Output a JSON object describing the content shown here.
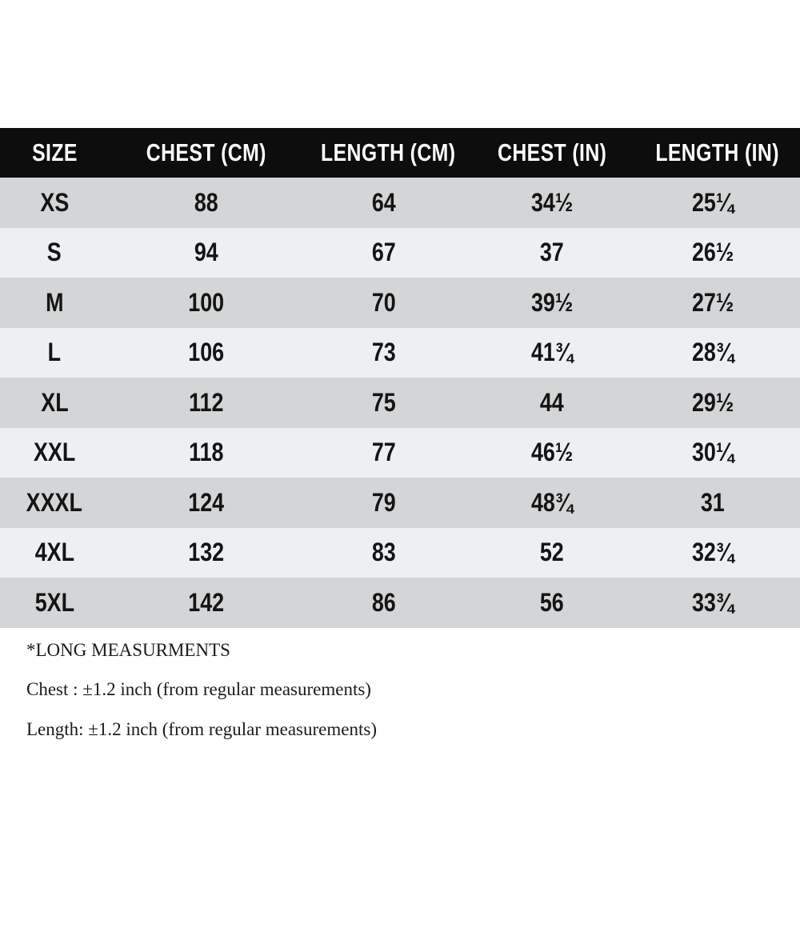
{
  "chart_data": {
    "type": "table",
    "columns": [
      "SIZE",
      "CHEST (CM)",
      "LENGTH (CM)",
      "CHEST (IN)",
      "LENGTH (IN)"
    ],
    "rows": [
      [
        "XS",
        "88",
        "64",
        "34½",
        "25¼"
      ],
      [
        "S",
        "94",
        "67",
        "37",
        "26½"
      ],
      [
        "M",
        "100",
        "70",
        "39½",
        "27½"
      ],
      [
        "L",
        "106",
        "73",
        "41¾",
        "28¾"
      ],
      [
        "XL",
        "112",
        "75",
        "44",
        "29½"
      ],
      [
        "XXL",
        "118",
        "77",
        "46½",
        "30¼"
      ],
      [
        "XXXL",
        "124",
        "79",
        "48¾",
        "31"
      ],
      [
        "4XL",
        "132",
        "83",
        "52",
        "32¾"
      ],
      [
        "5XL",
        "142",
        "86",
        "56",
        "33¾"
      ]
    ]
  },
  "notes": {
    "title": "*LONG MEASURMENTS",
    "chest_note": "Chest : ±1.2 inch (from regular measurements)",
    "length_note": "Length: ±1.2 inch (from regular measurements)"
  },
  "colors": {
    "page_bg": "#ffffff",
    "header_bg": "#0d0d0d",
    "header_text": "#ffffff",
    "row_gray": "#d4d5d6",
    "row_light": "#edf0f3",
    "text": "#141414"
  }
}
